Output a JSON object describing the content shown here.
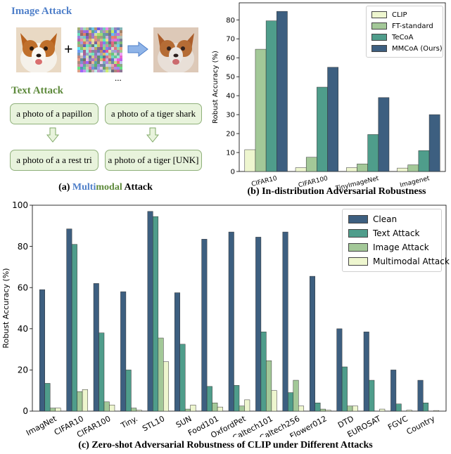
{
  "panel_a": {
    "image_attack_title": "Image Attack",
    "text_attack_title": "Text Attack",
    "plus": "+",
    "ellipsis": "...",
    "prompts_original": [
      "a photo of a papillon",
      "a photo of a tiger shark"
    ],
    "prompts_attacked": [
      "a photo of a a rest tri",
      "a photo of a tiger [UNK]"
    ],
    "caption_prefix": "(a) ",
    "caption_multi": "Multi",
    "caption_modal": "modal",
    "caption_suffix": " Attack",
    "colors": {
      "image_title": "#4f7fc9",
      "text_title": "#5e8a3c",
      "box_fill": "#e8f3dc",
      "box_border": "#8fb07a"
    }
  },
  "chart_data": [
    {
      "type": "bar",
      "caption": "(b) In-distribution Adversarial Robustness",
      "ylabel": "Robust Accuracy (%)",
      "ylim": [
        0,
        89
      ],
      "yticks": [
        0,
        10,
        20,
        30,
        40,
        50,
        60,
        70,
        80
      ],
      "categories": [
        "CIFAR10",
        "CIFAR100",
        "TinyImageNet",
        "Imagenet"
      ],
      "legend_position": "top-right",
      "grid": false,
      "series": [
        {
          "name": "CLIP",
          "color": "#eef6cf",
          "values": [
            11.5,
            2.0,
            2.0,
            1.8
          ]
        },
        {
          "name": "FT-standard",
          "color": "#a3c898",
          "values": [
            64.5,
            7.5,
            4.0,
            3.5
          ]
        },
        {
          "name": "TeCoA",
          "color": "#4f9d8b",
          "values": [
            79.5,
            44.5,
            19.5,
            11.0
          ]
        },
        {
          "name": "MMCoA (Ours)",
          "color": "#3d5f80",
          "values": [
            84.5,
            55.0,
            39.0,
            30.0
          ]
        }
      ]
    },
    {
      "type": "bar",
      "caption": "(c) Zero-shot Adversarial Robustness of CLIP under Different Attacks",
      "ylabel": "Robust Accuracy (%)",
      "ylim": [
        0,
        100
      ],
      "yticks": [
        0,
        20,
        40,
        60,
        80,
        100
      ],
      "categories": [
        "ImagNet",
        "CIFAR10",
        "CIFAR100",
        "Tiny.",
        "STL10",
        "SUN",
        "Food101",
        "OxfordPet",
        "Caltech101",
        "Caltech256",
        "Flower012",
        "DTD",
        "EUROSAT",
        "FGVC",
        "Country"
      ],
      "legend_position": "top-right",
      "grid": false,
      "series": [
        {
          "name": "Clean",
          "color": "#3d5f80",
          "values": [
            59.0,
            88.5,
            62.0,
            58.0,
            97.0,
            57.5,
            83.5,
            87.0,
            84.5,
            87.0,
            65.5,
            40.0,
            38.5,
            20.0,
            15.0
          ]
        },
        {
          "name": "Text Attack",
          "color": "#4f9d8b",
          "values": [
            13.5,
            81.0,
            38.0,
            20.0,
            94.5,
            32.5,
            12.0,
            12.5,
            38.5,
            9.0,
            4.0,
            21.5,
            15.0,
            3.5,
            4.0
          ]
        },
        {
          "name": "Image Attack",
          "color": "#a3c898",
          "values": [
            1.5,
            9.5,
            4.5,
            1.5,
            35.5,
            1.0,
            4.0,
            2.5,
            24.5,
            15.0,
            1.0,
            2.5,
            0.0,
            0.0,
            0.0
          ]
        },
        {
          "name": "Multimodal Attack",
          "color": "#eef6cf",
          "values": [
            1.5,
            10.5,
            3.0,
            0.5,
            24.0,
            3.0,
            2.0,
            5.5,
            10.0,
            2.5,
            0.5,
            2.5,
            1.0,
            0.5,
            0.3
          ]
        }
      ]
    }
  ]
}
